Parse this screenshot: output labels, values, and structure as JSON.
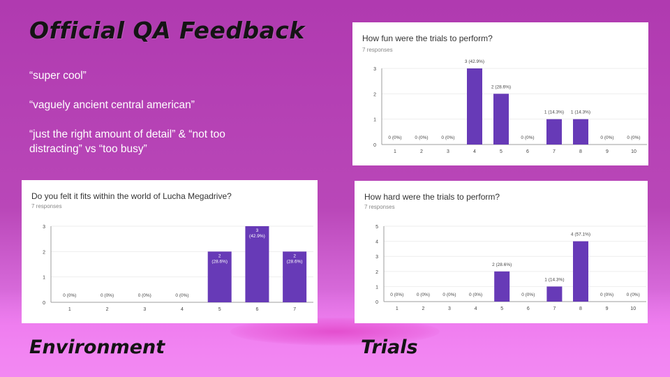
{
  "slide": {
    "title": "Official QA Feedback",
    "quotes": [
      "“super cool”",
      "“vaguely ancient central american”",
      "“just the right amount of detail” & “not too distracting” vs “too busy”"
    ],
    "environment_label": "Environment",
    "trials_label": "Trials"
  },
  "colors": {
    "bar": "#673ab7",
    "axis": "#9e9e9e",
    "grid": "#eeeeee",
    "text": "#444444",
    "muted": "#888888"
  },
  "chart_data": [
    {
      "id": "fun",
      "type": "bar",
      "title": "How fun were the trials to perform?",
      "subtitle": "7 responses",
      "categories": [
        "1",
        "2",
        "3",
        "4",
        "5",
        "6",
        "7",
        "8",
        "9",
        "10"
      ],
      "values": [
        0,
        0,
        0,
        3,
        2,
        0,
        1,
        1,
        0,
        0
      ],
      "data_labels": [
        "0 (0%)",
        "0 (0%)",
        "0 (0%)",
        "3 (42.9%)",
        "2 (28.6%)",
        "0 (0%)",
        "1 (14.3%)",
        "1 (14.3%)",
        "0 (0%)",
        "0 (0%)"
      ],
      "ylim": [
        0,
        3
      ],
      "yticks": [
        0,
        1,
        2,
        3
      ],
      "grid": true
    },
    {
      "id": "environment",
      "type": "bar",
      "title": "Do you felt it fits within the world of Lucha Megadrive?",
      "subtitle": "7 responses",
      "categories": [
        "1",
        "2",
        "3",
        "4",
        "5",
        "6",
        "7"
      ],
      "values": [
        0,
        0,
        0,
        0,
        2,
        3,
        2
      ],
      "data_labels": [
        "0 (0%)",
        "0 (0%)",
        "0 (0%)",
        "0 (0%)",
        "2 (28.6%)",
        "3 (42.9%)",
        "2 (28.6%)"
      ],
      "ylim": [
        0,
        3
      ],
      "yticks": [
        0,
        1,
        2,
        3
      ],
      "grid": true
    },
    {
      "id": "hard",
      "type": "bar",
      "title": "How hard were the trials to perform?",
      "subtitle": "7 responses",
      "categories": [
        "1",
        "2",
        "3",
        "4",
        "5",
        "6",
        "7",
        "8",
        "9",
        "10"
      ],
      "values": [
        0,
        0,
        0,
        0,
        2,
        0,
        1,
        4,
        0,
        0
      ],
      "data_labels": [
        "0 (0%)",
        "0 (0%)",
        "0 (0%)",
        "0 (0%)",
        "2 (28.6%)",
        "0 (0%)",
        "1 (14.3%)",
        "4 (57.1%)",
        "0 (0%)",
        "0 (0%)"
      ],
      "ylim": [
        0,
        5
      ],
      "yticks": [
        0,
        1,
        2,
        3,
        4,
        5
      ],
      "grid": true
    }
  ]
}
